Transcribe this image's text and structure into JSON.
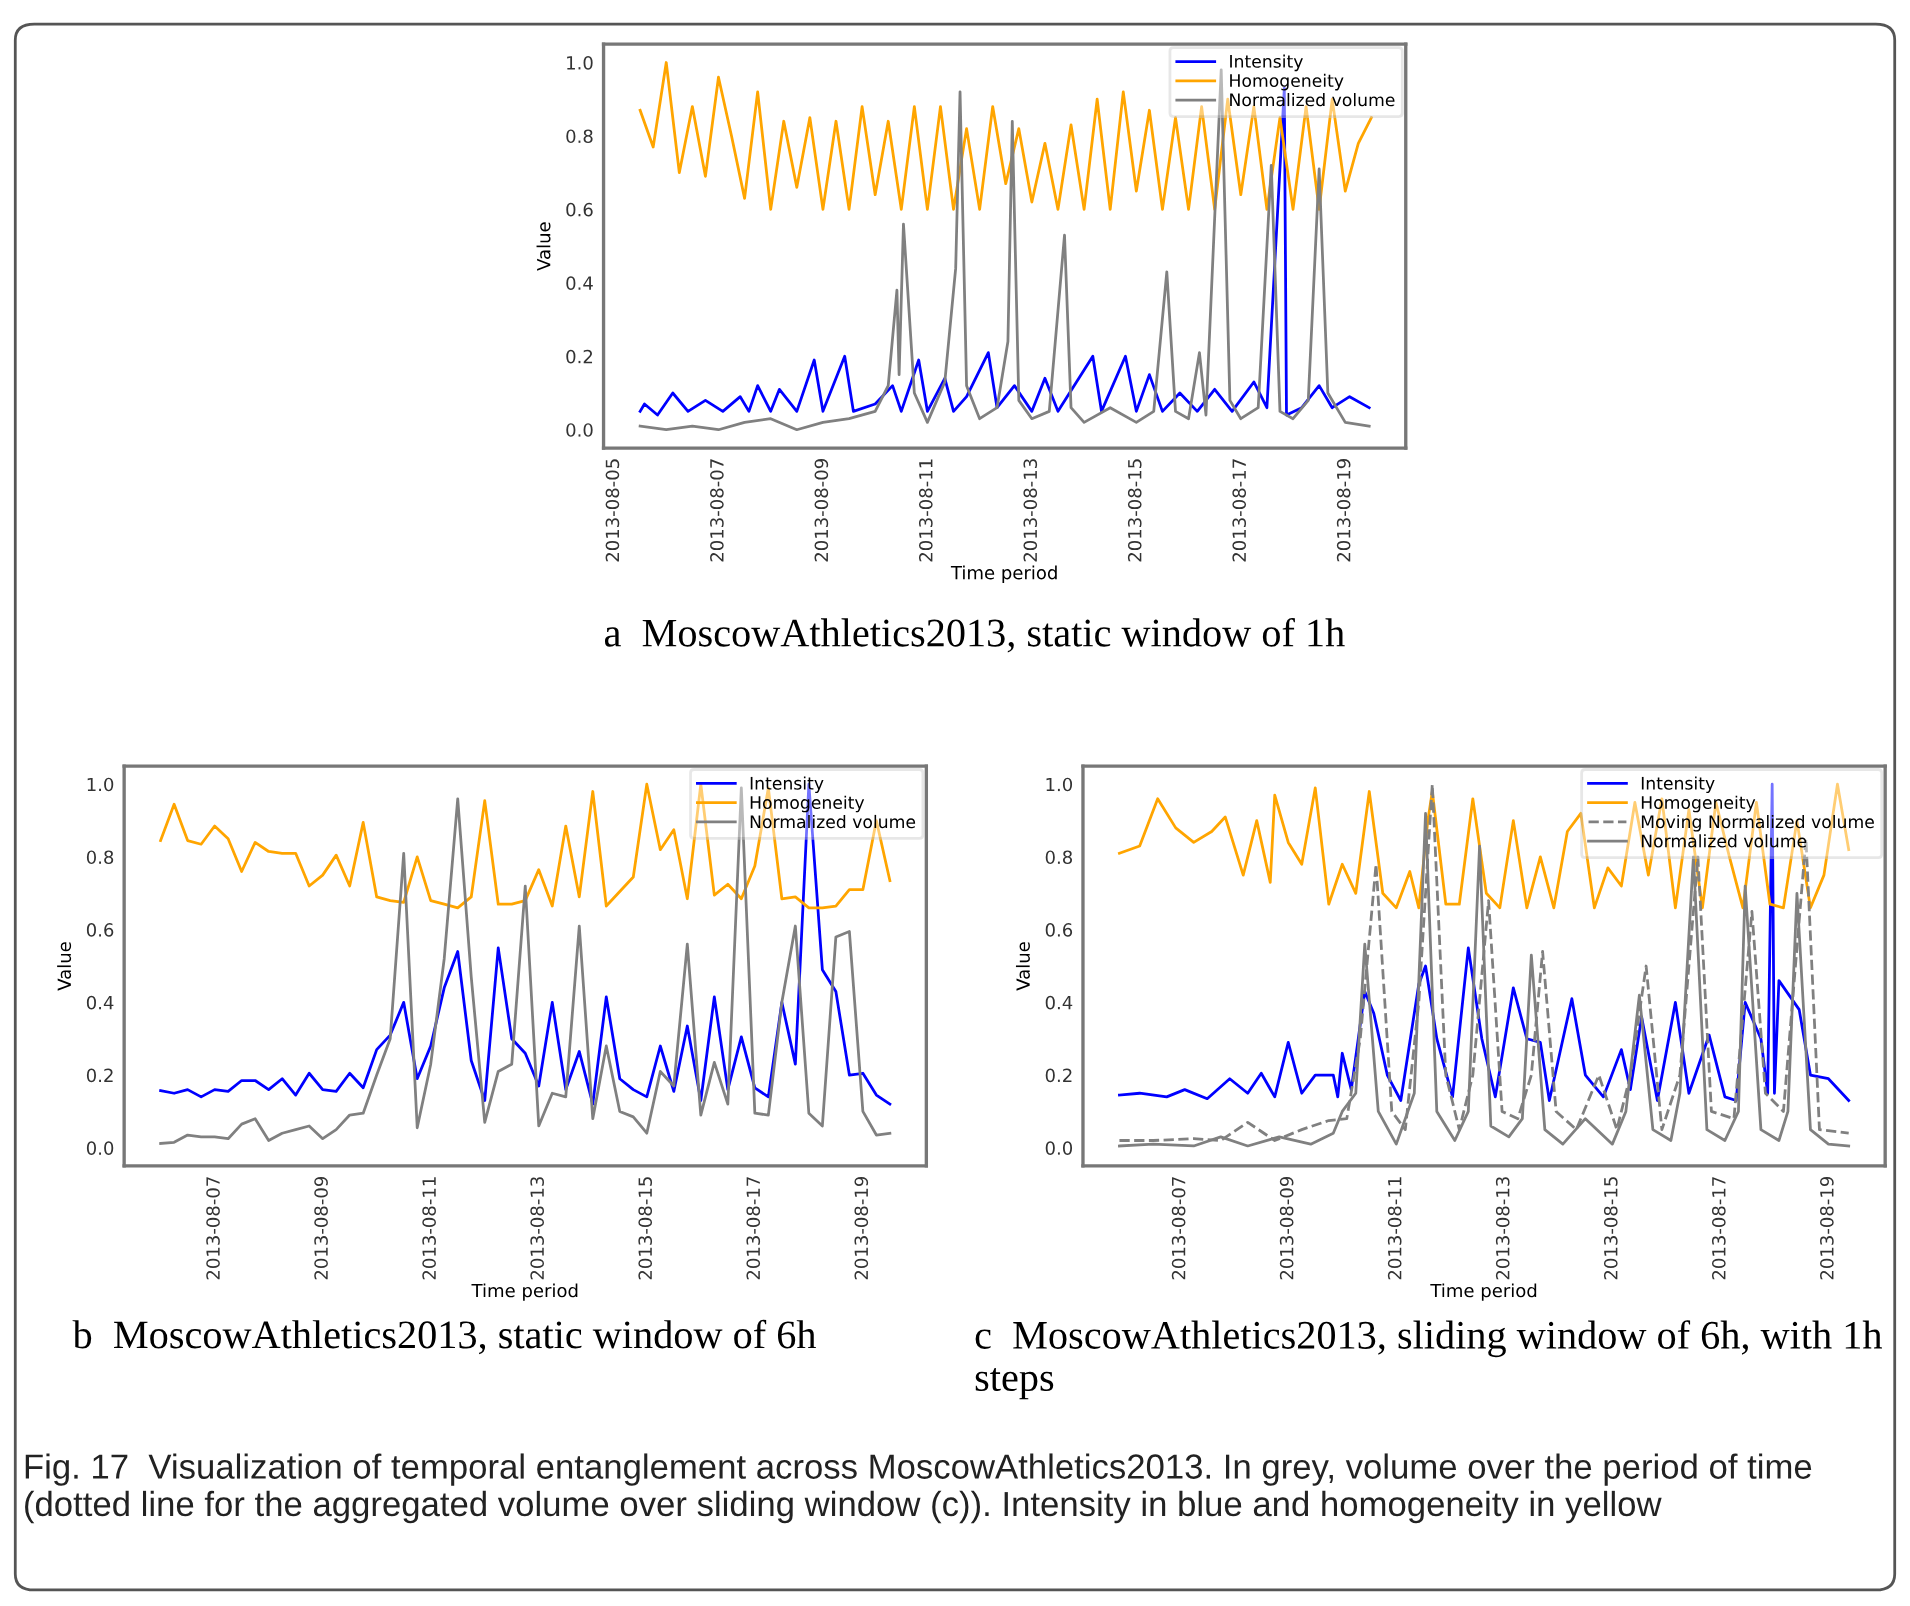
{
  "chart_data": [
    {
      "type": "line",
      "xlabel": "Time period",
      "ylabel": "Value",
      "legend": "top right",
      "grid": false,
      "annotations": [
        "a  MoscowAthletics2013, static window of 1h"
      ],
      "xlim": [
        "2013-08-04T19:12",
        "2013-08-20T03:48"
      ],
      "xticks": [
        "2013-08-05",
        "2013-08-07",
        "2013-08-09",
        "2013-08-11",
        "2013-08-13",
        "2013-08-15",
        "2013-08-17",
        "2013-08-19"
      ],
      "ylim": [
        -0.05,
        1.05
      ],
      "yticks": [
        {
          "value": 0,
          "label": "0.0"
        },
        {
          "value": 0.2,
          "label": "0.2"
        },
        {
          "value": 0.4,
          "label": "0.4"
        },
        {
          "value": 0.6,
          "label": "0.6"
        },
        {
          "value": 0.8,
          "label": "0.8"
        },
        {
          "value": 1,
          "label": "1.0"
        }
      ],
      "series": [
        {
          "name": "Intensity",
          "color": "#0000ff",
          "x": [
            "2013-08-05T12:00",
            "2013-08-05T14:00",
            "2013-08-05T20:00",
            "2013-08-06T03:00",
            "2013-08-06T10:00",
            "2013-08-06T18:00",
            "2013-08-07T02:00",
            "2013-08-07T10:00",
            "2013-08-07T14:00",
            "2013-08-07T18:00",
            "2013-08-08T00:00",
            "2013-08-08T04:00",
            "2013-08-08T12:00",
            "2013-08-08T20:00",
            "2013-08-09T00:00",
            "2013-08-09T10:00",
            "2013-08-09T14:00",
            "2013-08-10T00:00",
            "2013-08-10T08:00",
            "2013-08-10T12:00",
            "2013-08-10T20:00",
            "2013-08-11T00:00",
            "2013-08-11T08:00",
            "2013-08-11T12:00",
            "2013-08-11T18:00",
            "2013-08-12T04:00",
            "2013-08-12T08:00",
            "2013-08-12T16:00",
            "2013-08-13T00:00",
            "2013-08-13T06:00",
            "2013-08-13T12:00",
            "2013-08-14T04:00",
            "2013-08-14T08:00",
            "2013-08-14T19:00",
            "2013-08-15T00:00",
            "2013-08-15T06:00",
            "2013-08-15T12:00",
            "2013-08-15T20:00",
            "2013-08-16T04:00",
            "2013-08-16T12:00",
            "2013-08-16T20:00",
            "2013-08-17T06:00",
            "2013-08-17T12:00",
            "2013-08-17T20:00",
            "2013-08-17T21:00",
            "2013-08-18T04:00",
            "2013-08-18T12:00",
            "2013-08-18T18:00",
            "2013-08-19T02:00",
            "2013-08-19T11:00"
          ],
          "values": [
            0.05,
            0.07,
            0.04,
            0.1,
            0.05,
            0.08,
            0.05,
            0.09,
            0.05,
            0.12,
            0.05,
            0.11,
            0.05,
            0.19,
            0.05,
            0.2,
            0.05,
            0.07,
            0.12,
            0.05,
            0.19,
            0.05,
            0.14,
            0.05,
            0.09,
            0.21,
            0.06,
            0.12,
            0.05,
            0.14,
            0.05,
            0.2,
            0.05,
            0.2,
            0.05,
            0.15,
            0.05,
            0.1,
            0.05,
            0.11,
            0.05,
            0.13,
            0.06,
            0.93,
            0.04,
            0.06,
            0.12,
            0.06,
            0.09,
            0.06
          ]
        },
        {
          "name": "Homogeneity",
          "color": "#ffa500",
          "x": [
            "2013-08-05T12:00",
            "2013-08-05T18:00",
            "2013-08-06T00:00",
            "2013-08-06T06:00",
            "2013-08-06T12:00",
            "2013-08-06T18:00",
            "2013-08-07T00:00",
            "2013-08-07T06:00",
            "2013-08-07T12:00",
            "2013-08-07T18:00",
            "2013-08-08T00:00",
            "2013-08-08T06:00",
            "2013-08-08T12:00",
            "2013-08-08T18:00",
            "2013-08-09T00:00",
            "2013-08-09T06:00",
            "2013-08-09T12:00",
            "2013-08-09T18:00",
            "2013-08-10T00:00",
            "2013-08-10T06:00",
            "2013-08-10T12:00",
            "2013-08-10T18:00",
            "2013-08-11T00:00",
            "2013-08-11T06:00",
            "2013-08-11T12:00",
            "2013-08-11T18:00",
            "2013-08-12T00:00",
            "2013-08-12T06:00",
            "2013-08-12T12:00",
            "2013-08-12T18:00",
            "2013-08-13T00:00",
            "2013-08-13T06:00",
            "2013-08-13T12:00",
            "2013-08-13T18:00",
            "2013-08-14T00:00",
            "2013-08-14T06:00",
            "2013-08-14T12:00",
            "2013-08-14T18:00",
            "2013-08-15T00:00",
            "2013-08-15T06:00",
            "2013-08-15T12:00",
            "2013-08-15T18:00",
            "2013-08-16T00:00",
            "2013-08-16T06:00",
            "2013-08-16T12:00",
            "2013-08-16T18:00",
            "2013-08-17T00:00",
            "2013-08-17T06:00",
            "2013-08-17T12:00",
            "2013-08-17T18:00",
            "2013-08-18T00:00",
            "2013-08-18T06:00",
            "2013-08-18T12:00",
            "2013-08-18T18:00",
            "2013-08-19T00:00",
            "2013-08-19T06:00",
            "2013-08-19T12:00"
          ],
          "values": [
            0.87,
            0.77,
            1.0,
            0.7,
            0.88,
            0.69,
            0.96,
            0.8,
            0.63,
            0.92,
            0.6,
            0.84,
            0.66,
            0.85,
            0.6,
            0.84,
            0.6,
            0.88,
            0.64,
            0.84,
            0.6,
            0.88,
            0.6,
            0.88,
            0.6,
            0.82,
            0.6,
            0.88,
            0.67,
            0.82,
            0.62,
            0.78,
            0.6,
            0.83,
            0.6,
            0.9,
            0.6,
            0.92,
            0.65,
            0.87,
            0.6,
            0.85,
            0.6,
            0.88,
            0.6,
            0.9,
            0.64,
            0.88,
            0.6,
            0.85,
            0.6,
            0.88,
            0.6,
            0.9,
            0.65,
            0.78,
            0.85
          ]
        },
        {
          "name": "Normalized volume",
          "color": "#808080",
          "x": [
            "2013-08-05T12:00",
            "2013-08-06T00:00",
            "2013-08-06T12:00",
            "2013-08-07T00:00",
            "2013-08-07T12:00",
            "2013-08-08T00:00",
            "2013-08-08T12:00",
            "2013-08-09T00:00",
            "2013-08-09T12:00",
            "2013-08-10T00:00",
            "2013-08-10T06:00",
            "2013-08-10T10:00",
            "2013-08-10T11:00",
            "2013-08-10T13:00",
            "2013-08-10T18:00",
            "2013-08-11T00:00",
            "2013-08-11T08:00",
            "2013-08-11T13:00",
            "2013-08-11T15:00",
            "2013-08-11T18:00",
            "2013-08-12T00:00",
            "2013-08-12T08:00",
            "2013-08-12T13:00",
            "2013-08-12T15:00",
            "2013-08-12T18:00",
            "2013-08-13T00:00",
            "2013-08-13T08:00",
            "2013-08-13T15:00",
            "2013-08-13T18:00",
            "2013-08-14T00:00",
            "2013-08-14T12:00",
            "2013-08-15T00:00",
            "2013-08-15T08:00",
            "2013-08-15T14:00",
            "2013-08-15T18:00",
            "2013-08-16T00:00",
            "2013-08-16T05:00",
            "2013-08-16T08:00",
            "2013-08-16T15:00",
            "2013-08-16T19:00",
            "2013-08-17T00:00",
            "2013-08-17T08:00",
            "2013-08-17T14:00",
            "2013-08-17T18:00",
            "2013-08-18T00:00",
            "2013-08-18T07:00",
            "2013-08-18T12:00",
            "2013-08-18T16:00",
            "2013-08-19T00:00",
            "2013-08-19T11:00"
          ],
          "values": [
            0.01,
            0.0,
            0.01,
            0.0,
            0.02,
            0.03,
            0.0,
            0.02,
            0.03,
            0.05,
            0.12,
            0.38,
            0.15,
            0.56,
            0.1,
            0.02,
            0.13,
            0.44,
            0.92,
            0.12,
            0.03,
            0.06,
            0.24,
            0.84,
            0.08,
            0.03,
            0.05,
            0.53,
            0.06,
            0.02,
            0.06,
            0.02,
            0.05,
            0.43,
            0.05,
            0.03,
            0.21,
            0.04,
            0.98,
            0.08,
            0.03,
            0.06,
            0.72,
            0.05,
            0.03,
            0.08,
            0.71,
            0.1,
            0.02,
            0.01
          ]
        }
      ]
    },
    {
      "type": "line",
      "xlabel": "Time period",
      "ylabel": "Value",
      "legend": "top right",
      "grid": false,
      "annotations": [
        "b  MoscowAthletics2013, static window of 6h"
      ],
      "xlim": [
        "2013-08-05T07:48",
        "2013-08-20T04:12"
      ],
      "xticks": [
        "2013-08-07",
        "2013-08-09",
        "2013-08-11",
        "2013-08-13",
        "2013-08-15",
        "2013-08-17",
        "2013-08-19"
      ],
      "ylim": [
        -0.05,
        1.05
      ],
      "yticks": [
        {
          "value": 0,
          "label": "0.0"
        },
        {
          "value": 0.2,
          "label": "0.2"
        },
        {
          "value": 0.4,
          "label": "0.4"
        },
        {
          "value": 0.6,
          "label": "0.6"
        },
        {
          "value": 0.8,
          "label": "0.8"
        },
        {
          "value": 1,
          "label": "1.0"
        }
      ],
      "x": [
        "2013-08-06T00:00",
        "2013-08-06T06:00",
        "2013-08-06T12:00",
        "2013-08-06T18:00",
        "2013-08-07T00:00",
        "2013-08-07T06:00",
        "2013-08-07T12:00",
        "2013-08-07T18:00",
        "2013-08-08T00:00",
        "2013-08-08T06:00",
        "2013-08-08T12:00",
        "2013-08-08T18:00",
        "2013-08-09T00:00",
        "2013-08-09T06:00",
        "2013-08-09T12:00",
        "2013-08-09T18:00",
        "2013-08-10T00:00",
        "2013-08-10T06:00",
        "2013-08-10T12:00",
        "2013-08-10T18:00",
        "2013-08-11T00:00",
        "2013-08-11T06:00",
        "2013-08-11T12:00",
        "2013-08-11T18:00",
        "2013-08-12T00:00",
        "2013-08-12T06:00",
        "2013-08-12T12:00",
        "2013-08-12T18:00",
        "2013-08-13T00:00",
        "2013-08-13T06:00",
        "2013-08-13T12:00",
        "2013-08-13T18:00",
        "2013-08-14T00:00",
        "2013-08-14T06:00",
        "2013-08-14T12:00",
        "2013-08-14T18:00",
        "2013-08-15T00:00",
        "2013-08-15T06:00",
        "2013-08-15T12:00",
        "2013-08-15T18:00",
        "2013-08-16T00:00",
        "2013-08-16T06:00",
        "2013-08-16T12:00",
        "2013-08-16T18:00",
        "2013-08-17T00:00",
        "2013-08-17T06:00",
        "2013-08-17T12:00",
        "2013-08-17T18:00",
        "2013-08-18T00:00",
        "2013-08-18T06:00",
        "2013-08-18T12:00",
        "2013-08-18T18:00",
        "2013-08-19T00:00",
        "2013-08-19T06:00",
        "2013-08-19T12:00"
      ],
      "series": [
        {
          "name": "Intensity",
          "color": "#0000ff",
          "values": [
            0.157,
            0.15,
            0.16,
            0.14,
            0.16,
            0.155,
            0.185,
            0.185,
            0.16,
            0.19,
            0.145,
            0.205,
            0.16,
            0.155,
            0.205,
            0.165,
            0.27,
            0.31,
            0.4,
            0.19,
            0.28,
            0.44,
            0.54,
            0.24,
            0.13,
            0.55,
            0.3,
            0.26,
            0.17,
            0.4,
            0.16,
            0.265,
            0.12,
            0.415,
            0.19,
            0.16,
            0.14,
            0.28,
            0.155,
            0.335,
            0.13,
            0.415,
            0.16,
            0.305,
            0.165,
            0.14,
            0.4,
            0.23,
            1.0,
            0.49,
            0.43,
            0.2,
            0.205,
            0.145,
            0.12
          ]
        },
        {
          "name": "Homogeneity",
          "color": "#ffa500",
          "values": [
            0.845,
            0.945,
            0.845,
            0.835,
            0.885,
            0.85,
            0.76,
            0.84,
            0.815,
            0.81,
            0.81,
            0.72,
            0.75,
            0.805,
            0.72,
            0.895,
            0.69,
            0.68,
            0.675,
            0.8,
            0.68,
            0.67,
            0.66,
            0.69,
            0.955,
            0.67,
            0.67,
            0.68,
            0.765,
            0.665,
            0.885,
            0.69,
            0.98,
            0.665,
            0.705,
            0.745,
            1.0,
            0.82,
            0.875,
            0.685,
            1.0,
            0.695,
            0.725,
            0.685,
            0.775,
            0.99,
            0.685,
            0.69,
            0.66,
            0.66,
            0.665,
            0.71,
            0.71,
            0.9,
            0.735
          ]
        },
        {
          "name": "Normalized volume",
          "color": "#808080",
          "values": [
            0.012,
            0.015,
            0.035,
            0.03,
            0.03,
            0.025,
            0.065,
            0.08,
            0.02,
            0.04,
            0.05,
            0.06,
            0.025,
            0.05,
            0.09,
            0.095,
            0.2,
            0.3,
            0.81,
            0.055,
            0.23,
            0.52,
            0.96,
            0.47,
            0.07,
            0.21,
            0.23,
            0.72,
            0.06,
            0.15,
            0.14,
            0.61,
            0.08,
            0.28,
            0.1,
            0.085,
            0.04,
            0.21,
            0.17,
            0.56,
            0.09,
            0.235,
            0.12,
            0.99,
            0.095,
            0.09,
            0.4,
            0.61,
            0.095,
            0.06,
            0.58,
            0.595,
            0.1,
            0.035,
            0.04
          ]
        }
      ]
    },
    {
      "type": "line",
      "xlabel": "Time period",
      "ylabel": "Value",
      "legend": "top right",
      "grid": false,
      "annotations": [
        "c  MoscowAthletics2013, sliding window of 6h, with 1h steps",
        "Fig. 17  Visualization of temporal entanglement across MoscowAthletics2013. In grey, volume over the period of time (dotted line for the aggregated volume over sliding window (c)). Intensity in blue and homogeneity in yellow"
      ],
      "xlim": [
        "2013-08-05T04:48",
        "2013-08-20T01:12"
      ],
      "xticks": [
        "2013-08-07",
        "2013-08-09",
        "2013-08-11",
        "2013-08-13",
        "2013-08-15",
        "2013-08-17",
        "2013-08-19"
      ],
      "ylim": [
        -0.05,
        1.05
      ],
      "yticks": [
        {
          "value": 0,
          "label": "0.0"
        },
        {
          "value": 0.2,
          "label": "0.2"
        },
        {
          "value": 0.4,
          "label": "0.4"
        },
        {
          "value": 0.6,
          "label": "0.6"
        },
        {
          "value": 0.8,
          "label": "0.8"
        },
        {
          "value": 1,
          "label": "1.0"
        }
      ],
      "series": [
        {
          "name": "Intensity",
          "color": "#0000ff",
          "x": [
            "2013-08-05T21:00",
            "2013-08-06T06:00",
            "2013-08-06T18:00",
            "2013-08-07T02:00",
            "2013-08-07T12:00",
            "2013-08-07T22:00",
            "2013-08-08T06:00",
            "2013-08-08T12:00",
            "2013-08-08T18:00",
            "2013-08-09T00:00",
            "2013-08-09T06:00",
            "2013-08-09T12:00",
            "2013-08-09T20:00",
            "2013-08-09T22:00",
            "2013-08-10T00:00",
            "2013-08-10T04:00",
            "2013-08-10T10:00",
            "2013-08-10T14:00",
            "2013-08-10T20:00",
            "2013-08-11T02:00",
            "2013-08-11T10:00",
            "2013-08-11T13:00",
            "2013-08-11T18:00",
            "2013-08-12T01:00",
            "2013-08-12T08:00",
            "2013-08-12T14:00",
            "2013-08-12T20:00",
            "2013-08-13T04:00",
            "2013-08-13T10:00",
            "2013-08-13T16:00",
            "2013-08-13T20:00",
            "2013-08-14T06:00",
            "2013-08-14T12:00",
            "2013-08-14T20:00",
            "2013-08-15T04:00",
            "2013-08-15T08:00",
            "2013-08-15T13:00",
            "2013-08-15T20:00",
            "2013-08-16T04:00",
            "2013-08-16T10:00",
            "2013-08-16T19:00",
            "2013-08-17T02:00",
            "2013-08-17T07:00",
            "2013-08-17T11:00",
            "2013-08-17T18:00",
            "2013-08-17T21:00",
            "2013-08-17T23:00",
            "2013-08-18T00:00",
            "2013-08-18T02:00",
            "2013-08-18T11:00",
            "2013-08-18T16:00",
            "2013-08-19T00:00",
            "2013-08-19T09:00"
          ],
          "values": [
            0.145,
            0.15,
            0.14,
            0.16,
            0.135,
            0.19,
            0.15,
            0.205,
            0.14,
            0.29,
            0.15,
            0.2,
            0.2,
            0.14,
            0.26,
            0.16,
            0.43,
            0.37,
            0.2,
            0.13,
            0.45,
            0.5,
            0.3,
            0.14,
            0.55,
            0.3,
            0.14,
            0.44,
            0.3,
            0.29,
            0.13,
            0.41,
            0.2,
            0.14,
            0.27,
            0.16,
            0.36,
            0.13,
            0.4,
            0.15,
            0.31,
            0.14,
            0.13,
            0.4,
            0.3,
            0.15,
            1.0,
            0.15,
            0.46,
            0.38,
            0.2,
            0.19,
            0.13
          ]
        },
        {
          "name": "Homogeneity",
          "color": "#ffa500",
          "x": [
            "2013-08-05T21:00",
            "2013-08-06T06:00",
            "2013-08-06T14:00",
            "2013-08-06T22:00",
            "2013-08-07T06:00",
            "2013-08-07T14:00",
            "2013-08-07T20:00",
            "2013-08-08T04:00",
            "2013-08-08T10:00",
            "2013-08-08T16:00",
            "2013-08-08T18:00",
            "2013-08-09T00:00",
            "2013-08-09T06:00",
            "2013-08-09T12:00",
            "2013-08-09T18:00",
            "2013-08-10T00:00",
            "2013-08-10T06:00",
            "2013-08-10T12:00",
            "2013-08-10T18:00",
            "2013-08-11T00:00",
            "2013-08-11T06:00",
            "2013-08-11T10:00",
            "2013-08-11T14:00",
            "2013-08-11T16:00",
            "2013-08-11T22:00",
            "2013-08-12T04:00",
            "2013-08-12T10:00",
            "2013-08-12T16:00",
            "2013-08-12T22:00",
            "2013-08-13T04:00",
            "2013-08-13T10:00",
            "2013-08-13T16:00",
            "2013-08-13T22:00",
            "2013-08-14T04:00",
            "2013-08-14T10:00",
            "2013-08-14T16:00",
            "2013-08-14T22:00",
            "2013-08-15T04:00",
            "2013-08-15T10:00",
            "2013-08-15T16:00",
            "2013-08-15T22:00",
            "2013-08-16T04:00",
            "2013-08-16T10:00",
            "2013-08-16T16:00",
            "2013-08-16T22:00",
            "2013-08-17T04:00",
            "2013-08-17T10:00",
            "2013-08-17T16:00",
            "2013-08-17T22:00",
            "2013-08-18T04:00",
            "2013-08-18T10:00",
            "2013-08-18T16:00",
            "2013-08-18T22:00",
            "2013-08-19T04:00",
            "2013-08-19T09:00"
          ],
          "values": [
            0.81,
            0.83,
            0.96,
            0.88,
            0.84,
            0.87,
            0.91,
            0.75,
            0.9,
            0.73,
            0.97,
            0.84,
            0.78,
            0.99,
            0.67,
            0.78,
            0.7,
            0.98,
            0.7,
            0.66,
            0.76,
            0.66,
            0.9,
            0.98,
            0.67,
            0.67,
            0.96,
            0.7,
            0.66,
            0.9,
            0.66,
            0.8,
            0.66,
            0.87,
            0.92,
            0.66,
            0.77,
            0.72,
            0.95,
            0.75,
            0.96,
            0.66,
            0.93,
            0.66,
            0.95,
            0.8,
            0.66,
            0.95,
            0.67,
            0.66,
            0.9,
            0.66,
            0.75,
            1.0,
            0.82
          ]
        },
        {
          "name": "Moving Normalized volume",
          "color": "#808080",
          "line_style": "dashed",
          "x": [
            "2013-08-05T21:00",
            "2013-08-06T12:00",
            "2013-08-07T06:00",
            "2013-08-07T18:00",
            "2013-08-08T06:00",
            "2013-08-08T18:00",
            "2013-08-09T06:00",
            "2013-08-09T18:00",
            "2013-08-10T02:00",
            "2013-08-10T08:00",
            "2013-08-10T15:00",
            "2013-08-10T22:00",
            "2013-08-11T04:00",
            "2013-08-11T10:00",
            "2013-08-11T16:00",
            "2013-08-11T22:00",
            "2013-08-12T04:00",
            "2013-08-12T10:00",
            "2013-08-12T17:00",
            "2013-08-12T23:00",
            "2013-08-13T06:00",
            "2013-08-13T12:00",
            "2013-08-13T17:00",
            "2013-08-13T23:00",
            "2013-08-14T08:00",
            "2013-08-14T18:00",
            "2013-08-15T02:00",
            "2013-08-15T08:00",
            "2013-08-15T15:00",
            "2013-08-15T22:00",
            "2013-08-16T06:00",
            "2013-08-16T14:00",
            "2013-08-16T20:00",
            "2013-08-17T06:00",
            "2013-08-17T14:00",
            "2013-08-17T20:00",
            "2013-08-18T04:00",
            "2013-08-18T14:00",
            "2013-08-18T20:00",
            "2013-08-19T09:00"
          ],
          "values": [
            0.02,
            0.02,
            0.025,
            0.02,
            0.07,
            0.02,
            0.05,
            0.075,
            0.08,
            0.3,
            0.78,
            0.1,
            0.05,
            0.4,
            1.0,
            0.2,
            0.05,
            0.2,
            0.68,
            0.1,
            0.08,
            0.2,
            0.54,
            0.1,
            0.05,
            0.2,
            0.05,
            0.2,
            0.5,
            0.05,
            0.2,
            0.8,
            0.1,
            0.08,
            0.65,
            0.15,
            0.1,
            0.85,
            0.05,
            0.04
          ]
        },
        {
          "name": "Normalized volume",
          "color": "#808080",
          "x": [
            "2013-08-05T21:00",
            "2013-08-06T12:00",
            "2013-08-07T06:00",
            "2013-08-07T18:00",
            "2013-08-08T06:00",
            "2013-08-08T20:00",
            "2013-08-09T10:00",
            "2013-08-09T20:00",
            "2013-08-10T00:00",
            "2013-08-10T06:00",
            "2013-08-10T10:00",
            "2013-08-10T16:00",
            "2013-08-11T00:00",
            "2013-08-11T08:00",
            "2013-08-11T13:00",
            "2013-08-11T18:00",
            "2013-08-12T02:00",
            "2013-08-12T08:00",
            "2013-08-12T13:00",
            "2013-08-12T18:00",
            "2013-08-13T02:00",
            "2013-08-13T08:00",
            "2013-08-13T12:00",
            "2013-08-13T18:00",
            "2013-08-14T02:00",
            "2013-08-14T12:00",
            "2013-08-15T00:00",
            "2013-08-15T06:00",
            "2013-08-15T12:00",
            "2013-08-15T18:00",
            "2013-08-16T02:00",
            "2013-08-16T06:00",
            "2013-08-16T12:00",
            "2013-08-16T18:00",
            "2013-08-17T02:00",
            "2013-08-17T08:00",
            "2013-08-17T11:00",
            "2013-08-17T18:00",
            "2013-08-18T02:00",
            "2013-08-18T06:00",
            "2013-08-18T10:00",
            "2013-08-18T16:00",
            "2013-08-19T00:00",
            "2013-08-19T09:00"
          ],
          "values": [
            0.005,
            0.01,
            0.005,
            0.03,
            0.005,
            0.03,
            0.01,
            0.04,
            0.1,
            0.15,
            0.56,
            0.1,
            0.01,
            0.15,
            0.92,
            0.1,
            0.02,
            0.1,
            0.83,
            0.06,
            0.03,
            0.08,
            0.53,
            0.05,
            0.01,
            0.08,
            0.01,
            0.1,
            0.42,
            0.05,
            0.02,
            0.15,
            0.8,
            0.05,
            0.02,
            0.1,
            0.72,
            0.05,
            0.02,
            0.1,
            0.7,
            0.05,
            0.01,
            0.005
          ]
        }
      ]
    }
  ]
}
